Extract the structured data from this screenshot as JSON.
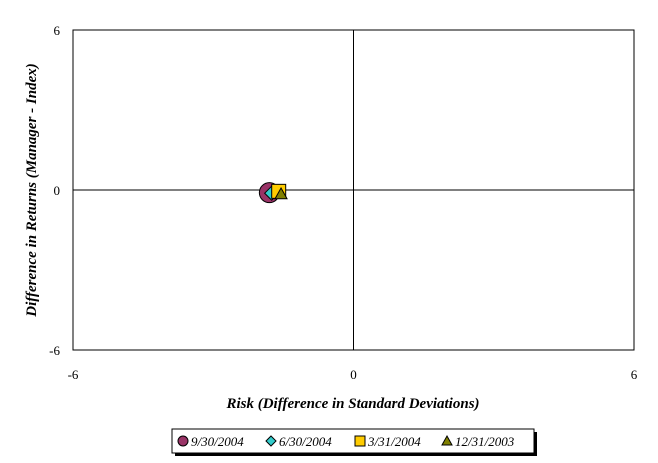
{
  "chart_data": {
    "type": "scatter",
    "xlabel": "Risk (Difference in Standard Deviations)",
    "ylabel": "Difference in Returns (Manager - Index)",
    "xlim": [
      -6,
      6
    ],
    "ylim": [
      -6,
      6
    ],
    "x_ticks": [
      "-6",
      "0",
      "6"
    ],
    "y_ticks": [
      "6",
      "0",
      "-6"
    ],
    "grid": false,
    "quadrant_lines": true,
    "legend_position": "bottom",
    "series": [
      {
        "name": "9/30/2004",
        "marker": "circle",
        "color": "#993366",
        "x": -1.8,
        "y": -0.1
      },
      {
        "name": "6/30/2004",
        "marker": "diamond",
        "color": "#33CCCC",
        "x": -1.75,
        "y": -0.12
      },
      {
        "name": "3/31/2004",
        "marker": "square",
        "color": "#FFCC00",
        "x": -1.6,
        "y": -0.05
      },
      {
        "name": "12/31/2003",
        "marker": "triangle",
        "color": "#808000",
        "x": -1.55,
        "y": -0.15
      }
    ]
  }
}
